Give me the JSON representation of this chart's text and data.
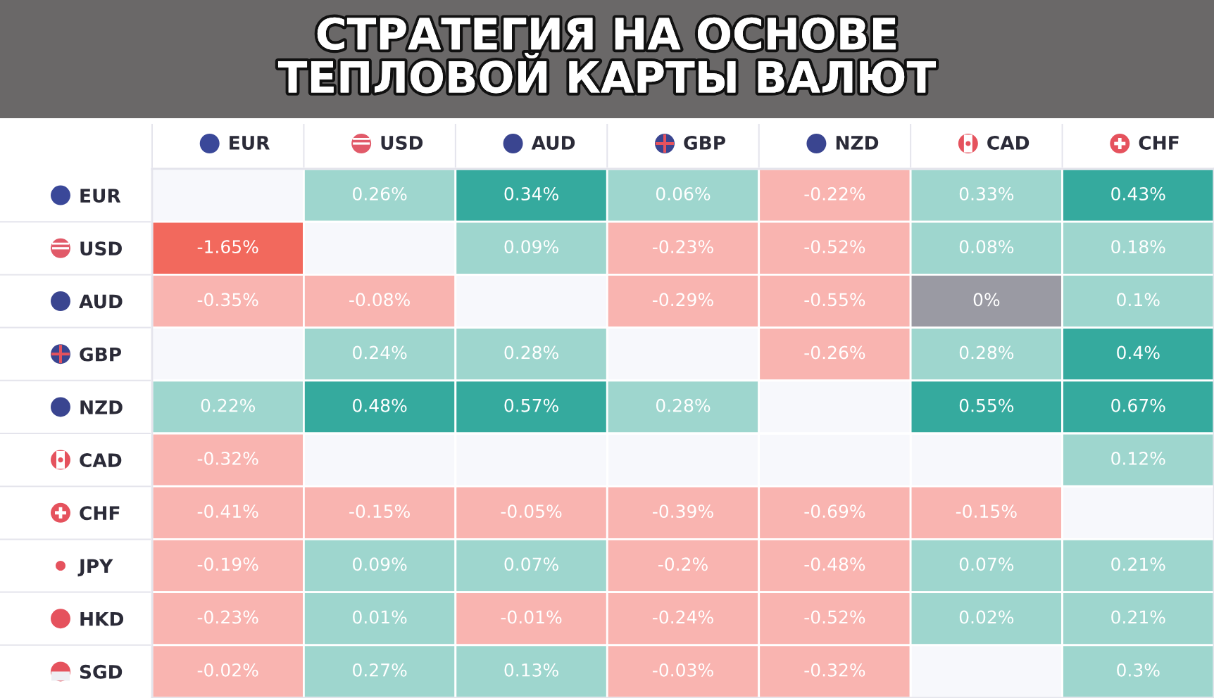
{
  "chart_data": {
    "type": "heatmap",
    "title": "СТРАТЕГИЯ НА ОСНОВЕ\nТЕПЛОВОЙ КАРТЫ ВАЛЮТ",
    "categories": [
      "EUR",
      "USD",
      "AUD",
      "GBP",
      "NZD",
      "CAD",
      "CHF"
    ],
    "y_categories": [
      "EUR",
      "USD",
      "AUD",
      "GBP",
      "NZD",
      "CAD",
      "CHF",
      "JPY",
      "HKD",
      "SGD"
    ],
    "cells": [
      [
        null,
        0.26,
        0.34,
        0.06,
        -0.22,
        0.33,
        0.43
      ],
      [
        -1.65,
        null,
        0.09,
        -0.23,
        -0.52,
        0.08,
        0.18
      ],
      [
        -0.35,
        -0.08,
        null,
        -0.29,
        -0.55,
        0,
        0.1
      ],
      [
        null,
        0.24,
        0.28,
        null,
        -0.26,
        0.28,
        0.4
      ],
      [
        0.22,
        0.48,
        0.57,
        0.28,
        null,
        0.55,
        0.67
      ],
      [
        -0.32,
        null,
        null,
        null,
        null,
        null,
        0.12
      ],
      [
        -0.41,
        -0.15,
        -0.05,
        -0.39,
        -0.69,
        -0.15,
        null
      ],
      [
        -0.19,
        0.09,
        0.07,
        -0.2,
        -0.48,
        0.07,
        0.21
      ],
      [
        -0.23,
        0.01,
        -0.01,
        -0.24,
        -0.52,
        0.02,
        0.21
      ],
      [
        -0.02,
        0.27,
        0.13,
        -0.03,
        -0.32,
        null,
        0.3
      ]
    ],
    "cell_labels": [
      [
        null,
        "0.26%",
        "0.34%",
        "0.06%",
        "-0.22%",
        "0.33%",
        "0.43%"
      ],
      [
        "-1.65%",
        null,
        "0.09%",
        "-0.23%",
        "-0.52%",
        "0.08%",
        "0.18%"
      ],
      [
        "-0.35%",
        "-0.08%",
        null,
        "-0.29%",
        "-0.55%",
        "0%",
        "0.1%"
      ],
      [
        null,
        "0.24%",
        "0.28%",
        null,
        "-0.26%",
        "0.28%",
        "0.4%"
      ],
      [
        "0.22%",
        "0.48%",
        "0.57%",
        "0.28%",
        null,
        "0.55%",
        "0.67%"
      ],
      [
        "-0.32%",
        null,
        null,
        null,
        null,
        null,
        "0.12%"
      ],
      [
        "-0.41%",
        "-0.15%",
        "-0.05%",
        "-0.39%",
        "-0.69%",
        "-0.15%",
        null
      ],
      [
        "-0.19%",
        "0.09%",
        "0.07%",
        "-0.2%",
        "-0.48%",
        "0.07%",
        "0.21%"
      ],
      [
        "-0.23%",
        "0.01%",
        "-0.01%",
        "-0.24%",
        "-0.52%",
        "0.02%",
        "0.21%"
      ],
      [
        "-0.02%",
        "0.27%",
        "0.13%",
        "-0.03%",
        "-0.32%",
        null,
        "0.3%"
      ]
    ]
  }
}
